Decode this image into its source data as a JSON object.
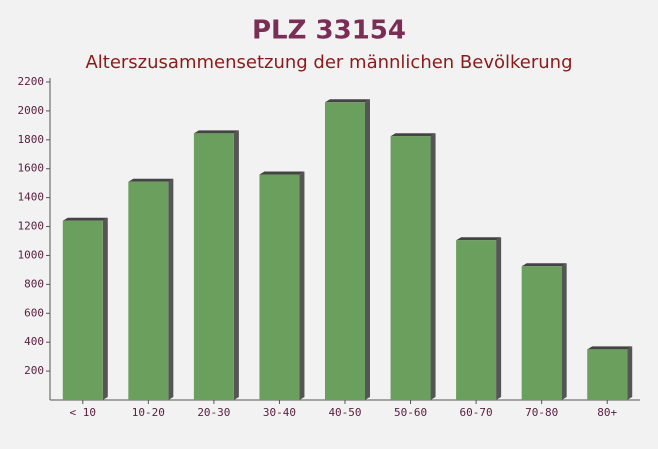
{
  "chart_data": {
    "type": "bar",
    "title": "PLZ 33154",
    "subtitle": "Alterszusammensetzung der männlichen Bevölkerung",
    "categories": [
      "< 10",
      "10-20",
      "20-30",
      "30-40",
      "40-50",
      "50-60",
      "60-70",
      "70-80",
      "80+"
    ],
    "values": [
      1240,
      1510,
      1845,
      1560,
      2060,
      1825,
      1105,
      925,
      350
    ],
    "color": "#6a9f5e",
    "ylim": [
      0,
      2200
    ],
    "yticks": [
      200,
      400,
      600,
      800,
      1000,
      1200,
      1400,
      1600,
      1800,
      2000,
      2200
    ]
  }
}
